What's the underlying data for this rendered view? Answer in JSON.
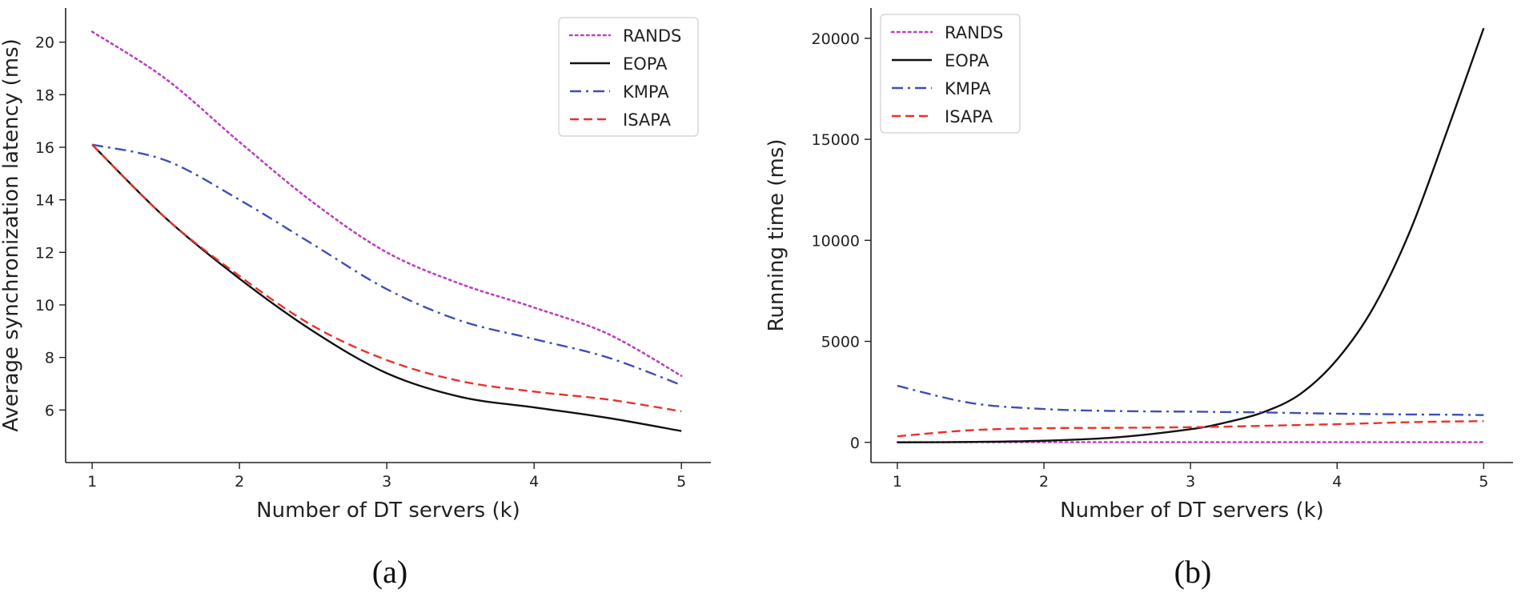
{
  "chart_data": [
    {
      "type": "line",
      "panel_caption": "(a)",
      "title": "",
      "xlabel": "Number of DT servers (k)",
      "ylabel": "Average synchronization latency (ms)",
      "xlim": [
        0.82,
        5.2
      ],
      "ylim": [
        4.0,
        21.3
      ],
      "xticks": [
        1,
        2,
        3,
        4,
        5
      ],
      "yticks": [
        6,
        8,
        10,
        12,
        14,
        16,
        18,
        20
      ],
      "grid": false,
      "legend_position": "top-right",
      "x": [
        1,
        1.5,
        2,
        2.5,
        3,
        3.5,
        4,
        4.5,
        5
      ],
      "series": [
        {
          "name": "RANDS",
          "style": "dotted",
          "color": "#bf40bf",
          "values": [
            20.4,
            18.6,
            16.2,
            13.9,
            12.0,
            10.8,
            9.9,
            8.9,
            7.3
          ]
        },
        {
          "name": "EOPA",
          "style": "solid",
          "color": "#111111",
          "values": [
            16.1,
            13.3,
            11.0,
            9.0,
            7.4,
            6.5,
            6.1,
            5.7,
            5.2
          ]
        },
        {
          "name": "KMPA",
          "style": "dashdot",
          "color": "#3f4fb5",
          "values": [
            16.1,
            15.5,
            14.0,
            12.3,
            10.6,
            9.4,
            8.7,
            8.0,
            6.95
          ]
        },
        {
          "name": "ISAPA",
          "style": "dashed",
          "color": "#e8322b",
          "values": [
            16.1,
            13.3,
            11.1,
            9.2,
            7.9,
            7.1,
            6.7,
            6.4,
            5.95
          ]
        }
      ]
    },
    {
      "type": "line",
      "panel_caption": "(b)",
      "title": "",
      "xlabel": "Number of DT servers (k)",
      "ylabel": "Running time (ms)",
      "xlim": [
        0.82,
        5.2
      ],
      "ylim": [
        -1000,
        21500
      ],
      "xticks": [
        1,
        2,
        3,
        4,
        5
      ],
      "yticks": [
        0,
        5000,
        10000,
        15000,
        20000
      ],
      "grid": false,
      "legend_position": "top-left",
      "x": [
        1,
        1.5,
        2,
        2.5,
        3,
        3.25,
        3.5,
        3.75,
        4,
        4.25,
        4.5,
        4.75,
        5
      ],
      "series": [
        {
          "name": "RANDS",
          "style": "dotted",
          "color": "#bf40bf",
          "values": [
            10,
            10,
            10,
            10,
            10,
            10,
            10,
            10,
            10,
            10,
            10,
            10,
            10
          ]
        },
        {
          "name": "EOPA",
          "style": "solid",
          "color": "#111111",
          "values": [
            0,
            20,
            80,
            250,
            650,
            1000,
            1500,
            2400,
            4100,
            6700,
            10500,
            15400,
            20500
          ]
        },
        {
          "name": "KMPA",
          "style": "dashdot",
          "color": "#3f4fb5",
          "values": [
            2800,
            1950,
            1650,
            1550,
            1520,
            1500,
            1480,
            1450,
            1420,
            1400,
            1380,
            1370,
            1350
          ]
        },
        {
          "name": "ISAPA",
          "style": "dashed",
          "color": "#e8322b",
          "values": [
            300,
            600,
            700,
            720,
            750,
            780,
            820,
            860,
            900,
            950,
            1000,
            1030,
            1050
          ]
        }
      ]
    }
  ]
}
